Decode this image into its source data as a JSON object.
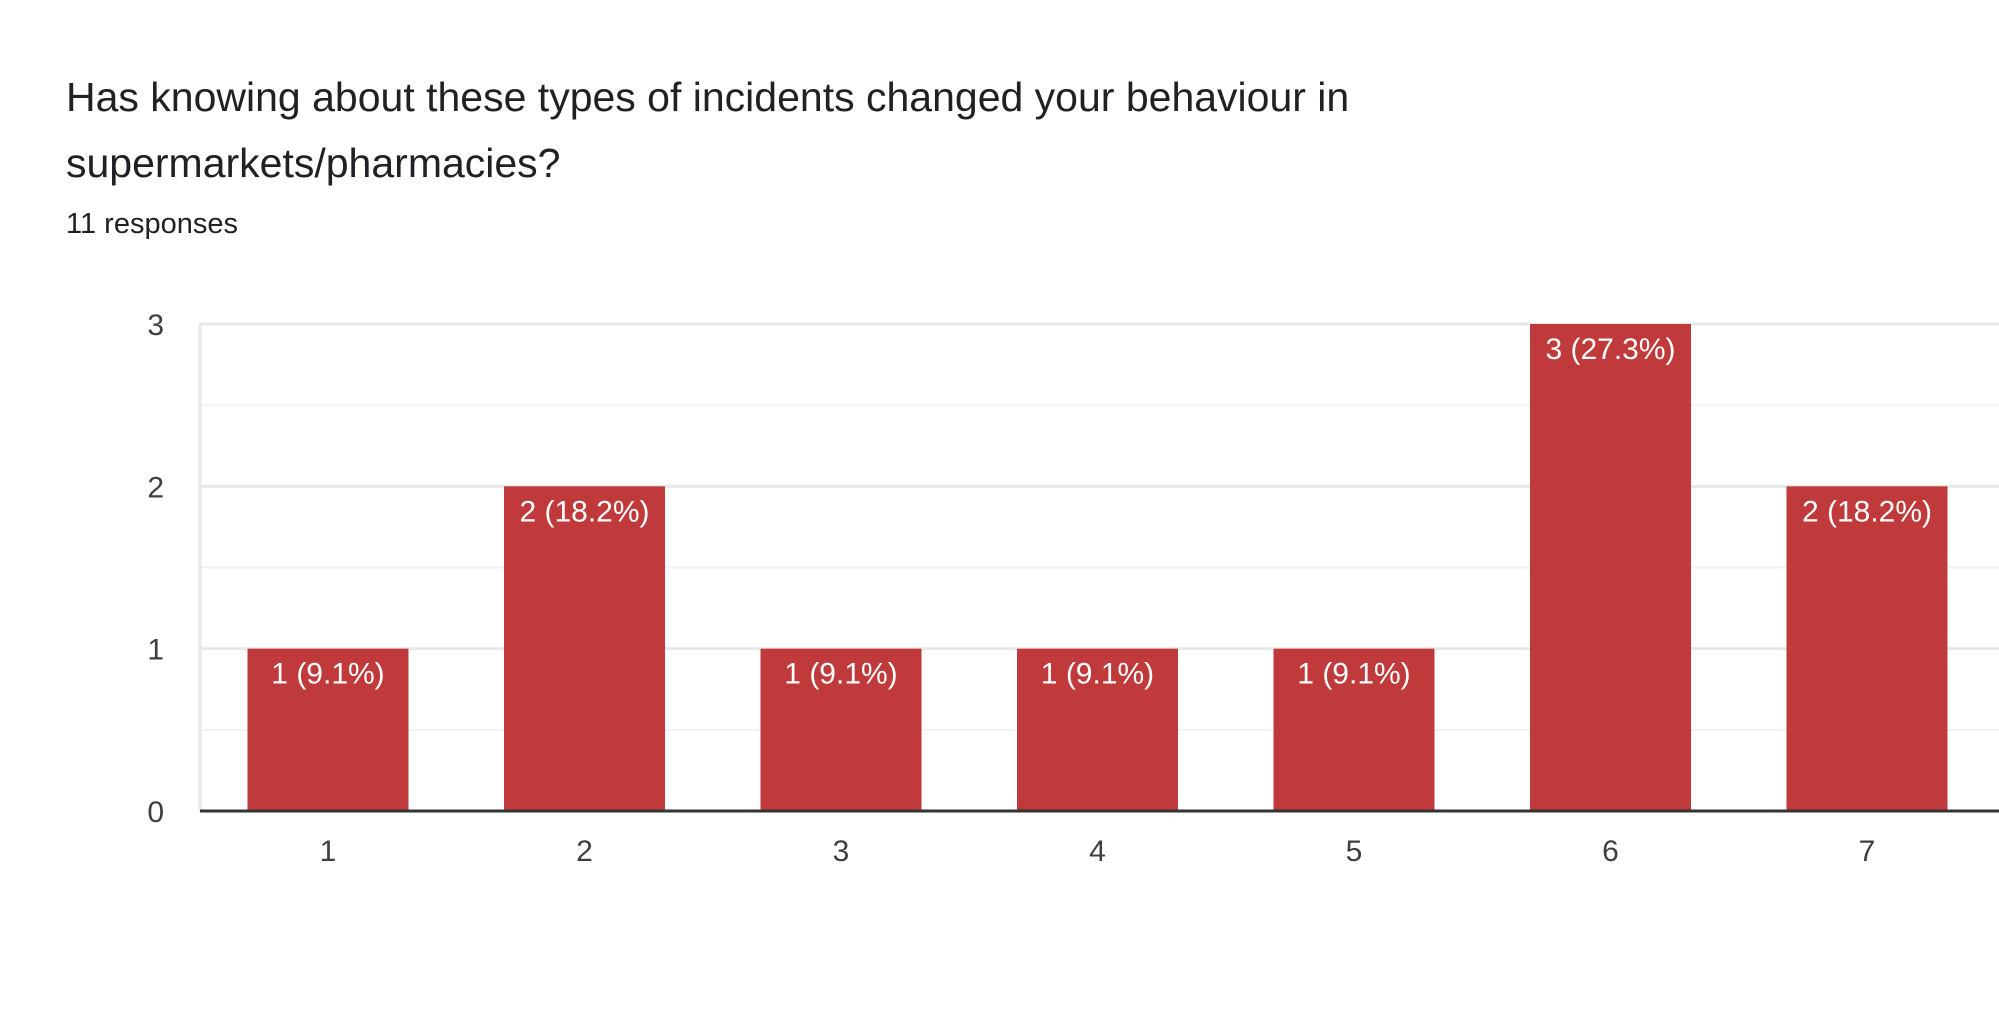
{
  "header": {
    "title": "Has knowing about these types of incidents changed your behaviour in supermarkets/pharmacies?",
    "response_count": "11 responses"
  },
  "colors": {
    "bar": "#c0393b",
    "grid": "#e8e8e8",
    "grid_minor": "#f2f2f2",
    "axis": "#333333",
    "label_text": "#ffffff",
    "tick_text": "#3c4043"
  },
  "chart_data": {
    "type": "bar",
    "categories": [
      "1",
      "2",
      "3",
      "4",
      "5",
      "6",
      "7"
    ],
    "values": [
      1,
      2,
      1,
      1,
      1,
      3,
      2
    ],
    "data_labels": [
      "1 (9.1%)",
      "2 (18.2%)",
      "1 (9.1%)",
      "1 (9.1%)",
      "1 (9.1%)",
      "3 (27.3%)",
      "2 (18.2%)"
    ],
    "yticks": [
      0,
      1,
      2,
      3
    ],
    "ylim": [
      0,
      3
    ],
    "title": "Has knowing about these types of incidents changed your behaviour in supermarkets/pharmacies?",
    "xlabel": "",
    "ylabel": "",
    "grid": true,
    "legend": "none"
  }
}
